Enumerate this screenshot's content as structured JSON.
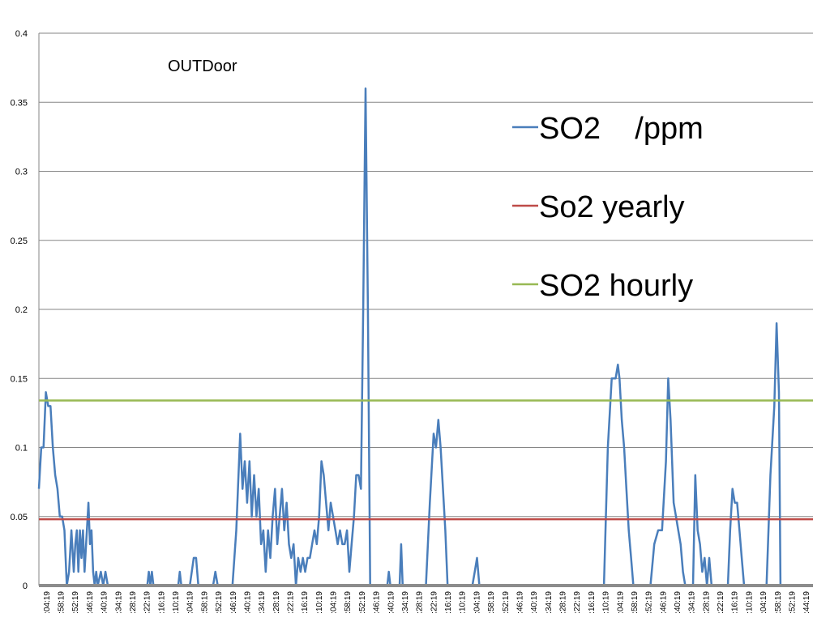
{
  "chart_data": {
    "type": "line",
    "title": "",
    "annotation": "OUTDoor",
    "xlabel": "",
    "ylabel": "",
    "ylim": [
      0,
      0.4
    ],
    "yticks": [
      0,
      0.05,
      0.1,
      0.15,
      0.2,
      0.25,
      0.3,
      0.35,
      0.4
    ],
    "ytick_labels": [
      "0",
      "0.05",
      "0.1",
      "0.15",
      "0.2",
      "0.25",
      "0.3",
      "0.35",
      "0.4"
    ],
    "x_tick_labels": [
      ":04:19",
      ":58:19",
      ":52:19",
      ":46:19",
      ":40:19",
      ":34:19",
      ":28:19",
      ":22:19",
      ":16:19",
      ":10:19",
      ":04:19",
      ":58:19",
      ":52:19",
      ":46:19",
      ":40:19",
      ":34:19",
      ":28:19",
      ":22:19",
      ":16:19",
      ":10:19",
      ":04:19",
      ":58:19",
      ":52:19",
      ":46:19",
      ":40:19",
      ":34:19",
      ":28:19",
      ":22:19",
      ":16:19",
      ":10:19",
      ":04:19",
      ":58:19",
      ":52:19",
      ":46:19",
      ":40:19",
      ":34:19",
      ":28:19",
      ":22:19",
      ":16:19",
      ":10:19",
      ":04:19",
      ":58:19",
      ":52:19",
      ":46:19",
      ":40:19",
      ":34:19",
      ":28:19",
      ":22:19",
      ":16:19",
      ":10:19",
      ":04:19",
      ":58:19",
      ":52:19",
      ":44:19"
    ],
    "grid": true,
    "legend_position": "right",
    "series": [
      {
        "name": "SO2    /ppm",
        "color": "#4a7ebb",
        "points": [
          [
            0,
            0.07
          ],
          [
            0.003,
            0.1
          ],
          [
            0.006,
            0.1
          ],
          [
            0.009,
            0.14
          ],
          [
            0.012,
            0.13
          ],
          [
            0.015,
            0.13
          ],
          [
            0.018,
            0.1
          ],
          [
            0.021,
            0.08
          ],
          [
            0.024,
            0.07
          ],
          [
            0.027,
            0.05
          ],
          [
            0.03,
            0.05
          ],
          [
            0.033,
            0.04
          ],
          [
            0.036,
            0.0
          ],
          [
            0.039,
            0.01
          ],
          [
            0.042,
            0.04
          ],
          [
            0.045,
            0.01
          ],
          [
            0.047,
            0.03
          ],
          [
            0.049,
            0.04
          ],
          [
            0.051,
            0.01
          ],
          [
            0.053,
            0.04
          ],
          [
            0.055,
            0.02
          ],
          [
            0.057,
            0.04
          ],
          [
            0.059,
            0.01
          ],
          [
            0.062,
            0.04
          ],
          [
            0.064,
            0.06
          ],
          [
            0.066,
            0.03
          ],
          [
            0.068,
            0.04
          ],
          [
            0.07,
            0.01
          ],
          [
            0.072,
            0.0
          ],
          [
            0.074,
            0.01
          ],
          [
            0.076,
            0.0
          ],
          [
            0.08,
            0.01
          ],
          [
            0.083,
            0.0
          ],
          [
            0.086,
            0.01
          ],
          [
            0.089,
            0.0
          ],
          [
            0.14,
            0.0
          ],
          [
            0.142,
            0.01
          ],
          [
            0.144,
            0.0
          ],
          [
            0.146,
            0.01
          ],
          [
            0.148,
            0.0
          ],
          [
            0.18,
            0.0
          ],
          [
            0.182,
            0.01
          ],
          [
            0.184,
            0.0
          ],
          [
            0.195,
            0.0
          ],
          [
            0.2,
            0.02
          ],
          [
            0.203,
            0.02
          ],
          [
            0.206,
            0.0
          ],
          [
            0.225,
            0.0
          ],
          [
            0.228,
            0.01
          ],
          [
            0.231,
            0.0
          ],
          [
            0.25,
            0.0
          ],
          [
            0.255,
            0.04
          ],
          [
            0.26,
            0.11
          ],
          [
            0.263,
            0.07
          ],
          [
            0.266,
            0.09
          ],
          [
            0.269,
            0.06
          ],
          [
            0.272,
            0.09
          ],
          [
            0.275,
            0.05
          ],
          [
            0.278,
            0.08
          ],
          [
            0.281,
            0.05
          ],
          [
            0.284,
            0.07
          ],
          [
            0.287,
            0.03
          ],
          [
            0.29,
            0.04
          ],
          [
            0.293,
            0.01
          ],
          [
            0.296,
            0.04
          ],
          [
            0.299,
            0.02
          ],
          [
            0.302,
            0.05
          ],
          [
            0.305,
            0.07
          ],
          [
            0.308,
            0.03
          ],
          [
            0.311,
            0.05
          ],
          [
            0.314,
            0.07
          ],
          [
            0.317,
            0.04
          ],
          [
            0.32,
            0.06
          ],
          [
            0.323,
            0.03
          ],
          [
            0.326,
            0.02
          ],
          [
            0.329,
            0.03
          ],
          [
            0.332,
            0.0
          ],
          [
            0.335,
            0.02
          ],
          [
            0.338,
            0.01
          ],
          [
            0.341,
            0.02
          ],
          [
            0.344,
            0.01
          ],
          [
            0.347,
            0.02
          ],
          [
            0.35,
            0.02
          ],
          [
            0.353,
            0.03
          ],
          [
            0.356,
            0.04
          ],
          [
            0.359,
            0.03
          ],
          [
            0.362,
            0.05
          ],
          [
            0.365,
            0.09
          ],
          [
            0.368,
            0.08
          ],
          [
            0.371,
            0.06
          ],
          [
            0.374,
            0.04
          ],
          [
            0.377,
            0.06
          ],
          [
            0.38,
            0.05
          ],
          [
            0.383,
            0.04
          ],
          [
            0.386,
            0.03
          ],
          [
            0.389,
            0.04
          ],
          [
            0.392,
            0.03
          ],
          [
            0.395,
            0.03
          ],
          [
            0.398,
            0.04
          ],
          [
            0.401,
            0.01
          ],
          [
            0.404,
            0.03
          ],
          [
            0.407,
            0.05
          ],
          [
            0.41,
            0.08
          ],
          [
            0.413,
            0.08
          ],
          [
            0.416,
            0.07
          ],
          [
            0.419,
            0.2
          ],
          [
            0.422,
            0.36
          ],
          [
            0.425,
            0.2
          ],
          [
            0.428,
            0.0
          ],
          [
            0.45,
            0.0
          ],
          [
            0.452,
            0.01
          ],
          [
            0.454,
            0.0
          ],
          [
            0.466,
            0.0
          ],
          [
            0.468,
            0.03
          ],
          [
            0.47,
            0.0
          ],
          [
            0.5,
            0.0
          ],
          [
            0.505,
            0.06
          ],
          [
            0.51,
            0.11
          ],
          [
            0.513,
            0.1
          ],
          [
            0.516,
            0.12
          ],
          [
            0.519,
            0.1
          ],
          [
            0.522,
            0.07
          ],
          [
            0.525,
            0.04
          ],
          [
            0.528,
            0.0
          ],
          [
            0.56,
            0.0
          ],
          [
            0.563,
            0.01
          ],
          [
            0.566,
            0.02
          ],
          [
            0.569,
            0.0
          ],
          [
            0.73,
            0.0
          ],
          [
            0.735,
            0.1
          ],
          [
            0.74,
            0.15
          ],
          [
            0.745,
            0.15
          ],
          [
            0.748,
            0.16
          ],
          [
            0.75,
            0.15
          ],
          [
            0.753,
            0.12
          ],
          [
            0.756,
            0.1
          ],
          [
            0.759,
            0.07
          ],
          [
            0.762,
            0.04
          ],
          [
            0.765,
            0.02
          ],
          [
            0.768,
            0.0
          ],
          [
            0.79,
            0.0
          ],
          [
            0.795,
            0.03
          ],
          [
            0.8,
            0.04
          ],
          [
            0.805,
            0.04
          ],
          [
            0.81,
            0.09
          ],
          [
            0.813,
            0.15
          ],
          [
            0.816,
            0.12
          ],
          [
            0.82,
            0.06
          ],
          [
            0.823,
            0.05
          ],
          [
            0.826,
            0.04
          ],
          [
            0.829,
            0.03
          ],
          [
            0.832,
            0.01
          ],
          [
            0.835,
            0.0
          ],
          [
            0.845,
            0.0
          ],
          [
            0.848,
            0.08
          ],
          [
            0.851,
            0.04
          ],
          [
            0.854,
            0.03
          ],
          [
            0.857,
            0.01
          ],
          [
            0.86,
            0.02
          ],
          [
            0.863,
            0.0
          ],
          [
            0.866,
            0.02
          ],
          [
            0.869,
            0.0
          ],
          [
            0.89,
            0.0
          ],
          [
            0.893,
            0.04
          ],
          [
            0.896,
            0.07
          ],
          [
            0.899,
            0.06
          ],
          [
            0.902,
            0.06
          ],
          [
            0.905,
            0.04
          ],
          [
            0.908,
            0.02
          ],
          [
            0.911,
            0.0
          ],
          [
            0.94,
            0.0
          ],
          [
            0.945,
            0.08
          ],
          [
            0.95,
            0.13
          ],
          [
            0.953,
            0.19
          ],
          [
            0.956,
            0.14
          ],
          [
            0.958,
            0.0
          ],
          [
            1.0,
            0.0
          ]
        ]
      },
      {
        "name": "So2 yearly",
        "color": "#be4b48",
        "constant": 0.048
      },
      {
        "name": "SO2 hourly",
        "color": "#98b954",
        "constant": 0.134
      }
    ]
  }
}
